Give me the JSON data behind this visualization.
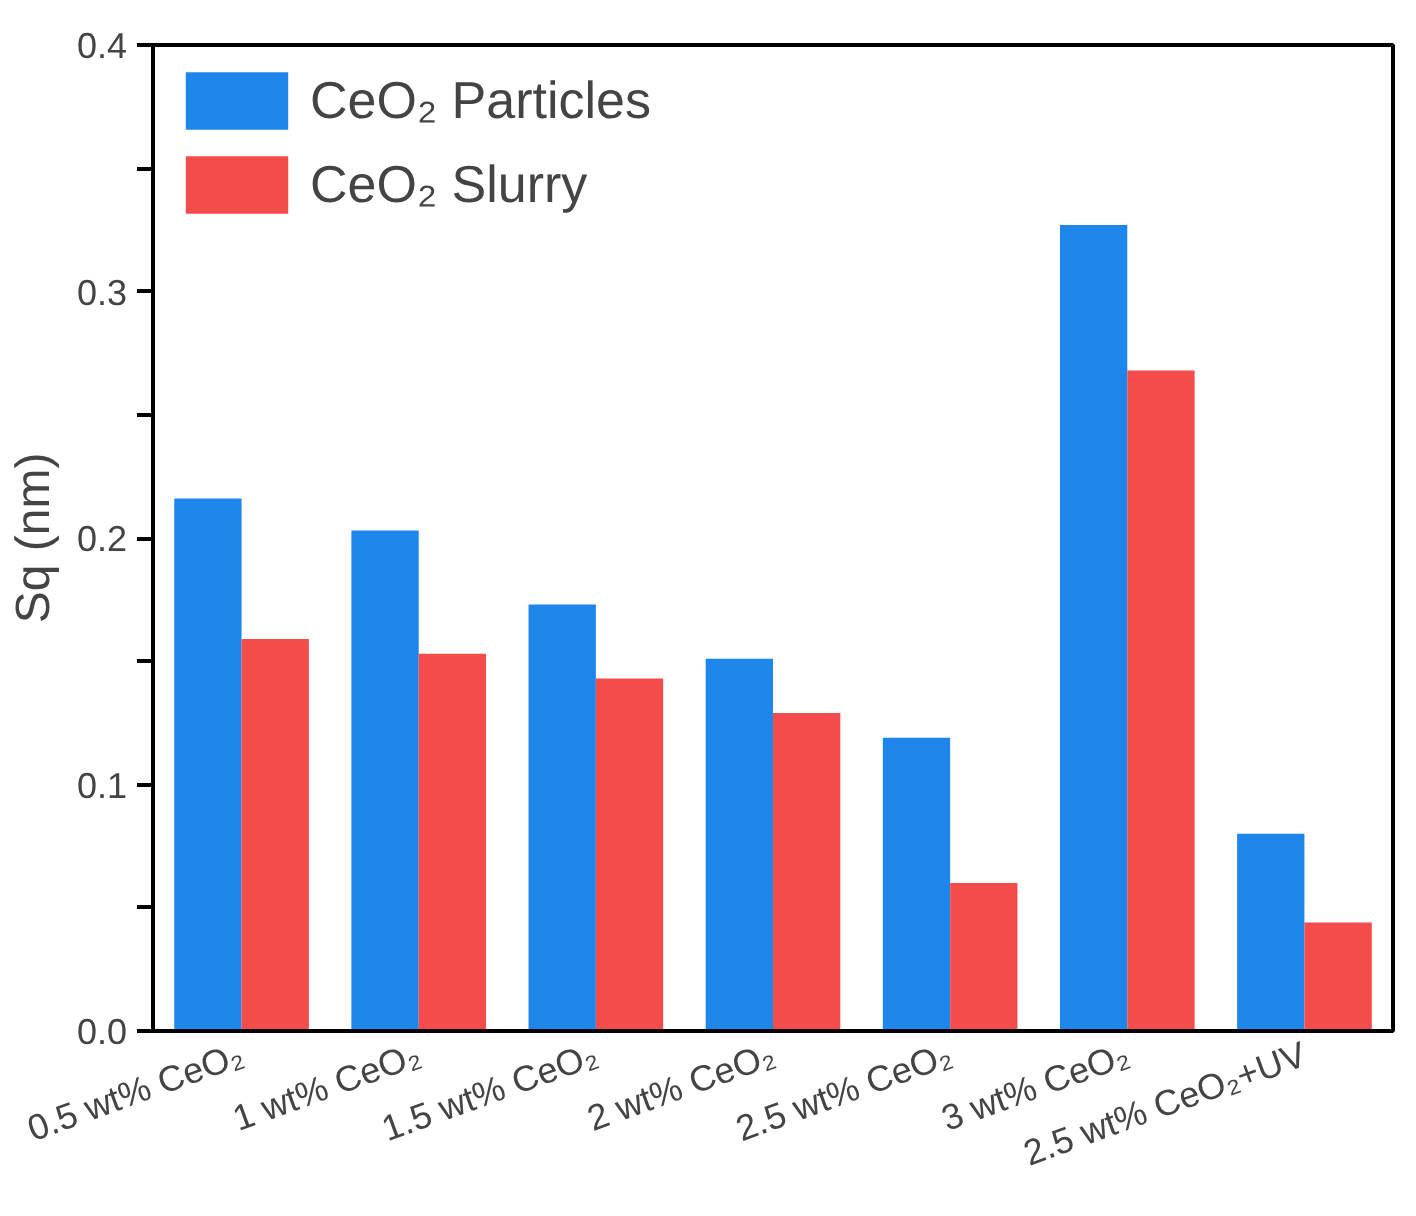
{
  "chart_data": {
    "type": "bar",
    "ylabel": "Sq (nm)",
    "categories": [
      "0.5 wt% CeO₂",
      "1 wt% CeO₂",
      "1.5 wt% CeO₂",
      "2 wt% CeO₂",
      "2.5 wt% CeO₂",
      "3 wt% CeO₂",
      "2.5 wt% CeO₂+UV"
    ],
    "series": [
      {
        "name": "CeO₂ Particles",
        "color": "#1e85eb",
        "values": [
          0.216,
          0.203,
          0.173,
          0.151,
          0.119,
          0.327,
          0.08
        ]
      },
      {
        "name": "CeO₂ Slurry",
        "color": "#f44b4b",
        "values": [
          0.159,
          0.153,
          0.143,
          0.129,
          0.06,
          0.268,
          0.044
        ]
      }
    ],
    "ylim": [
      0,
      0.4
    ],
    "yticks": [
      {
        "value": 0,
        "label": "0.0"
      },
      {
        "value": 0.05,
        "label": null
      },
      {
        "value": 0.1,
        "label": "0.1"
      },
      {
        "value": 0.15,
        "label": null
      },
      {
        "value": 0.2,
        "label": "0.2"
      },
      {
        "value": 0.25,
        "label": null
      },
      {
        "value": 0.3,
        "label": "0.3"
      },
      {
        "value": 0.35,
        "label": null
      },
      {
        "value": 0.4,
        "label": "0.4"
      }
    ],
    "grid": false,
    "legend": "top left"
  }
}
